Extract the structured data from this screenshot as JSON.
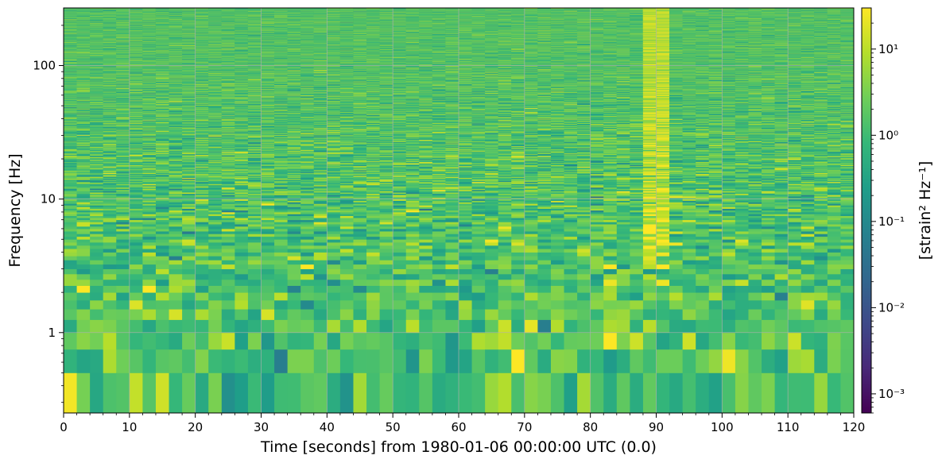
{
  "chart_data": {
    "type": "heatmap",
    "xlabel": "Time [seconds] from 1980-01-06 00:00:00 UTC (0.0)",
    "ylabel": "Frequency [Hz]",
    "colorbar_label": "[strain² Hz⁻¹]",
    "xlim": [
      0,
      120
    ],
    "ylim": [
      0.25,
      270
    ],
    "yscale": "log",
    "x_ticks": [
      0,
      10,
      20,
      30,
      40,
      50,
      60,
      70,
      80,
      90,
      100,
      110,
      120
    ],
    "x_tick_labels": [
      "0",
      "10",
      "20",
      "30",
      "40",
      "50",
      "60",
      "70",
      "80",
      "90",
      "100",
      "110",
      "120"
    ],
    "y_ticks": [
      1,
      10,
      100
    ],
    "y_tick_labels": [
      "1",
      "10",
      "100"
    ],
    "colorbar_range": [
      0.0006,
      30
    ],
    "colorbar_scale": "log",
    "colorbar_ticks": [
      0.001,
      0.01,
      0.1,
      1,
      10
    ],
    "colorbar_tick_labels": [
      "10⁻³",
      "10⁻²",
      "10⁻¹",
      "10⁰",
      "10¹"
    ],
    "colormap": "viridis",
    "grid": true,
    "time_bin_seconds": 2,
    "frequency_bin_hz": 0.25,
    "features": [
      {
        "time_range": [
          88,
          92
        ],
        "frequency_range": [
          0.25,
          270
        ],
        "level": 10
      }
    ]
  },
  "colors": {
    "viridis": [
      "#440154",
      "#482878",
      "#3e4989",
      "#31688e",
      "#26828e",
      "#1f9e89",
      "#35b779",
      "#6ece58",
      "#b5de2b",
      "#fde725"
    ],
    "grid": "#b0b0b0",
    "axis": "#000000"
  }
}
